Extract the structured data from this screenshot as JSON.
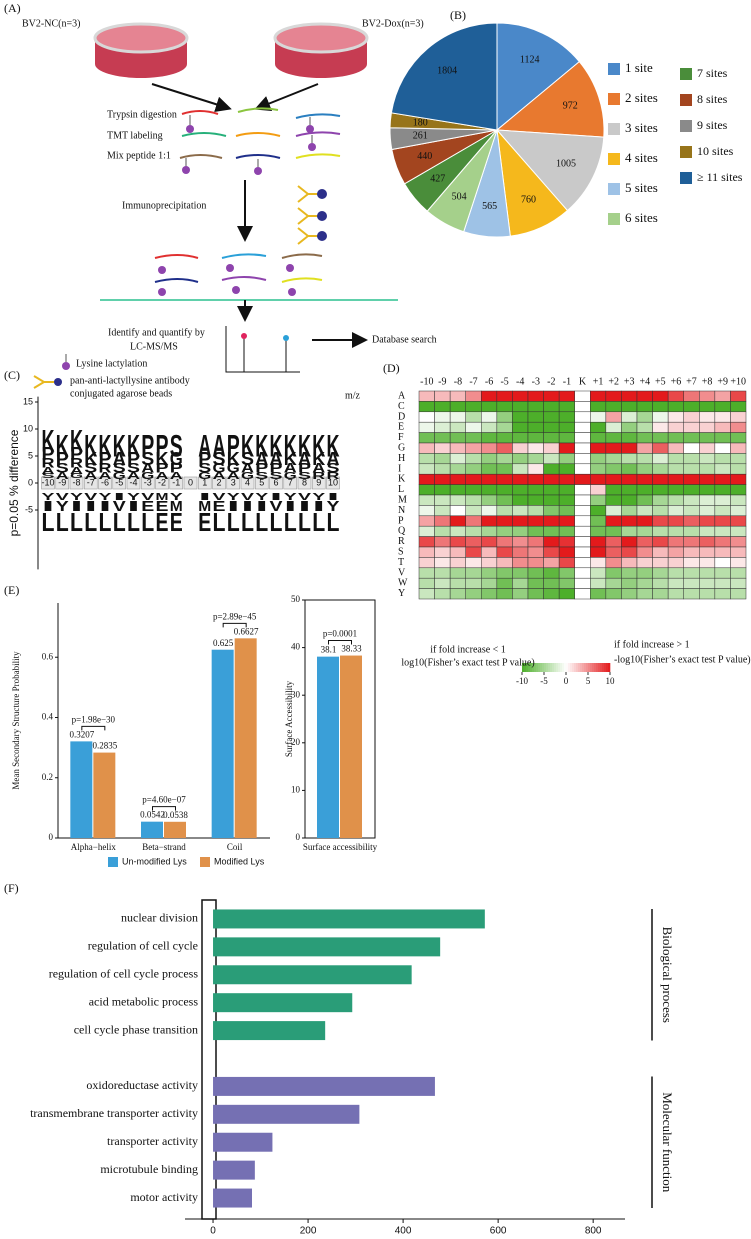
{
  "diagram": {
    "panel": "(A)",
    "dish_left": "BV2-NC(n=3)",
    "dish_right": "BV2-Dox(n=3)",
    "step1": "Trypsin digestion",
    "step2": "TMT labeling",
    "step3": "Mix peptide 1:1",
    "step4": "Immunoprecipitation",
    "step5_line1": "Identify and quantify by",
    "step5_line2": "LC-MS/MS",
    "search": "Database search",
    "mz": "m/z",
    "legend_lysine": "Lysine lactylation",
    "legend_antibody_line1": "pan-anti-lactyllysine antibody",
    "legend_antibody_line2": "conjugated agarose beads"
  },
  "chart_data": [
    {
      "type": "pie",
      "panel": "(B)",
      "labels": [
        "1 site",
        "2 sites",
        "3 sites",
        "4 sites",
        "5 sites",
        "6 sites",
        "7 sites",
        "8 sites",
        "9 sites",
        "10 sites",
        "≥ 11 sites"
      ],
      "values": [
        1124,
        972,
        1005,
        760,
        565,
        504,
        427,
        440,
        261,
        180,
        1804
      ],
      "colors": [
        "#4a88c9",
        "#e8792f",
        "#c9c9c9",
        "#f5b81c",
        "#9ec2e6",
        "#a5d08b",
        "#4a8d3a",
        "#a3451f",
        "#8a8a8a",
        "#97741a",
        "#1f5f98"
      ]
    },
    {
      "type": "heatmap",
      "panel": "(D)",
      "columns": [
        "-10",
        "-9",
        "-8",
        "-7",
        "-6",
        "-5",
        "-4",
        "-3",
        "-2",
        "-1",
        "K",
        "+1",
        "+2",
        "+3",
        "+4",
        "+5",
        "+6",
        "+7",
        "+8",
        "+9",
        "+10"
      ],
      "rows": [
        "A",
        "C",
        "D",
        "E",
        "F",
        "G",
        "H",
        "I",
        "K",
        "L",
        "M",
        "N",
        "P",
        "Q",
        "R",
        "S",
        "T",
        "V",
        "W",
        "Y"
      ],
      "values": [
        [
          3,
          3,
          3,
          5,
          10,
          10,
          10,
          10,
          10,
          10,
          0,
          10,
          10,
          10,
          10,
          10,
          8,
          6,
          5,
          4,
          8
        ],
        [
          -10,
          -10,
          -10,
          -10,
          -10,
          -10,
          -10,
          -10,
          -10,
          -10,
          0,
          -10,
          -10,
          -10,
          -10,
          -10,
          -10,
          -10,
          -10,
          -10,
          -10
        ],
        [
          0,
          -1,
          -1,
          -4,
          -1,
          -6,
          -10,
          -10,
          -10,
          -10,
          0,
          -1,
          4,
          -2,
          -5,
          -1,
          1,
          2,
          1,
          1,
          2
        ],
        [
          -1,
          -2,
          -3,
          -1,
          -3,
          -5,
          -10,
          -10,
          -10,
          -10,
          0,
          -10,
          -2,
          -6,
          -4,
          1,
          2,
          2,
          2,
          3,
          5
        ],
        [
          -8,
          -8,
          -8,
          -8,
          -9,
          -9,
          -9,
          -9,
          -9,
          -9,
          0,
          -9,
          -9,
          -9,
          -8,
          -8,
          -8,
          -8,
          -8,
          -8,
          -8
        ],
        [
          3,
          2,
          3,
          4,
          5,
          7,
          2,
          1,
          2,
          10,
          0,
          10,
          10,
          10,
          4,
          7,
          3,
          0,
          2,
          0,
          3
        ],
        [
          -4,
          -5,
          -2,
          -4,
          -6,
          -5,
          -6,
          -5,
          -3,
          -6,
          0,
          -6,
          -5,
          -4,
          -4,
          -2,
          -4,
          -4,
          -3,
          -4,
          -4
        ],
        [
          -3,
          -4,
          -5,
          -6,
          -8,
          -8,
          -3,
          1,
          -10,
          -10,
          0,
          -6,
          -7,
          -8,
          -6,
          -5,
          -4,
          -4,
          -4,
          -3,
          -4
        ],
        [
          10,
          10,
          10,
          10,
          10,
          10,
          10,
          10,
          10,
          10,
          10,
          10,
          10,
          10,
          10,
          10,
          10,
          10,
          10,
          10,
          10
        ],
        [
          -10,
          -10,
          -10,
          -10,
          -10,
          -10,
          -10,
          -10,
          -10,
          -10,
          0,
          2,
          -10,
          -10,
          -10,
          -10,
          -10,
          -10,
          -10,
          -10,
          -10
        ],
        [
          -3,
          -3,
          -3,
          -4,
          -6,
          -8,
          -10,
          -10,
          -10,
          -10,
          0,
          -6,
          -10,
          -10,
          -8,
          -5,
          -4,
          -3,
          -2,
          -2,
          -3
        ],
        [
          -1,
          -3,
          0,
          -3,
          -1,
          -4,
          -3,
          -4,
          -7,
          -8,
          0,
          -10,
          -2,
          -5,
          -3,
          -4,
          -2,
          -3,
          -2,
          -3,
          -2
        ],
        [
          4,
          6,
          10,
          6,
          10,
          10,
          10,
          10,
          10,
          10,
          0,
          -8,
          10,
          10,
          10,
          8,
          8,
          7,
          8,
          8,
          8
        ],
        [
          -2,
          -4,
          -3,
          -4,
          -5,
          -6,
          -6,
          -8,
          -8,
          -8,
          0,
          -8,
          -8,
          -5,
          -5,
          -4,
          -4,
          -4,
          -3,
          -3,
          -3
        ],
        [
          8,
          6,
          8,
          7,
          8,
          6,
          5,
          6,
          10,
          9,
          0,
          10,
          7,
          10,
          7,
          8,
          6,
          6,
          7,
          6,
          5
        ],
        [
          3,
          2,
          3,
          8,
          3,
          8,
          6,
          5,
          8,
          10,
          0,
          10,
          7,
          8,
          5,
          3,
          4,
          3,
          3,
          3,
          3
        ],
        [
          2,
          1,
          2,
          1,
          2,
          3,
          5,
          5,
          4,
          8,
          0,
          1,
          5,
          3,
          2,
          2,
          2,
          1,
          1,
          0,
          1
        ],
        [
          -4,
          -4,
          -5,
          -5,
          -6,
          -7,
          -7,
          -8,
          -9,
          -7,
          0,
          -3,
          -7,
          -6,
          -6,
          -5,
          -4,
          -4,
          -4,
          -4,
          -4
        ],
        [
          -4,
          -3,
          -4,
          -4,
          -5,
          -8,
          -5,
          -8,
          -8,
          -7,
          0,
          -3,
          -5,
          -6,
          -5,
          -4,
          -3,
          -3,
          -3,
          -3,
          -3
        ],
        [
          -3,
          -4,
          -5,
          -6,
          -7,
          -8,
          -6,
          -8,
          -9,
          -10,
          0,
          -8,
          -7,
          -6,
          -5,
          -5,
          -4,
          -4,
          -4,
          -4,
          -4
        ]
      ],
      "zlim": [
        -10,
        10
      ],
      "zticks": [
        -10,
        -5,
        0,
        5,
        10
      ],
      "colors": [
        "#4daf2a",
        "#ffffff",
        "#e31a1c"
      ],
      "note_low": [
        "if fold increase < 1",
        "log10(Fisher’s exact test P value)"
      ],
      "note_high": [
        "if fold increase > 1",
        "-log10(Fisher’s exact test P value)"
      ]
    },
    {
      "type": "logo",
      "panel": "(C)",
      "ylabel": "p=0.05 % difference",
      "ylim": [
        -16,
        16
      ],
      "yticks": [
        15,
        10,
        5,
        0,
        -5
      ],
      "positions": [
        -10,
        -9,
        -8,
        -7,
        -6,
        -5,
        -4,
        -3,
        -2,
        -1,
        0,
        1,
        2,
        3,
        4,
        5,
        6,
        7,
        8,
        9,
        10
      ],
      "up": [
        [
          "K",
          "P",
          "R",
          "A",
          "S"
        ],
        [
          "K",
          "P",
          "S",
          "A"
        ],
        [
          "K",
          "P",
          "R",
          "A",
          "G"
        ],
        [
          "K",
          "K",
          "S",
          "A"
        ],
        [
          "K",
          "P",
          "R",
          "A"
        ],
        [
          "K",
          "A",
          "S",
          "G"
        ],
        [
          "K",
          "P",
          "S",
          "A"
        ],
        [
          "P",
          "S",
          "A",
          "G"
        ],
        [
          "P",
          "K",
          "P",
          "A"
        ],
        [
          "S",
          "G",
          "P",
          "A"
        ],
        [],
        [
          "A",
          "P",
          "S",
          "G"
        ],
        [
          "A",
          "S",
          "G",
          "A"
        ],
        [
          "P",
          "K",
          "G",
          "A"
        ],
        [
          "K",
          "S",
          "A",
          "G"
        ],
        [
          "K",
          "A",
          "P",
          "S"
        ],
        [
          "K",
          "A",
          "P",
          "S"
        ],
        [
          "K",
          "K",
          "A",
          "G"
        ],
        [
          "K",
          "A",
          "P",
          "S"
        ],
        [
          "K",
          "K",
          "A",
          "R"
        ],
        [
          "K",
          "A",
          "S",
          "R"
        ]
      ],
      "down": [
        [
          "Y",
          "I",
          "L"
        ],
        [
          "V",
          "Y",
          "L"
        ],
        [
          "Y",
          "I",
          "L"
        ],
        [
          "V",
          "I",
          "L"
        ],
        [
          "Y",
          "I",
          "L"
        ],
        [
          "I",
          "V",
          "L"
        ],
        [
          "Y",
          "I",
          "L"
        ],
        [
          "V",
          "E",
          "L"
        ],
        [
          "M",
          "E",
          "E"
        ],
        [
          "Y",
          "M",
          "E"
        ],
        [],
        [
          "I",
          "M",
          "E"
        ],
        [
          "V",
          "E",
          "L"
        ],
        [
          "Y",
          "I",
          "L"
        ],
        [
          "V",
          "I",
          "L"
        ],
        [
          "Y",
          "I",
          "L"
        ],
        [
          "I",
          "V",
          "L"
        ],
        [
          "Y",
          "I",
          "L"
        ],
        [
          "V",
          "I",
          "L"
        ],
        [
          "Y",
          "I",
          "L"
        ],
        [
          "I",
          "Y",
          "L"
        ]
      ],
      "letter_colors": {
        "K": "#1f5fa8",
        "R": "#1f5fa8",
        "S": "#2a9a3a",
        "G": "#2a9a3a",
        "Y": "#2a9a3a",
        "E": "#d62728",
        "P": "#111111",
        "A": "#111111",
        "L": "#111111",
        "I": "#111111",
        "V": "#111111",
        "M": "#111111"
      }
    },
    {
      "type": "bar",
      "panel": "(E)",
      "ylabel": "Mean Secondary Structure Probability",
      "categories": [
        "Alpha−helix",
        "Beta−strand",
        "Coil"
      ],
      "series": [
        {
          "name": "Un-modified Lys",
          "color": "#3a9fd8",
          "values": [
            0.3207,
            0.0542,
            0.625
          ]
        },
        {
          "name": "Modified Lys",
          "color": "#e0914a",
          "values": [
            0.2835,
            0.0538,
            0.6627
          ]
        }
      ],
      "annotations": [
        "p=1.98e−30",
        "p=4.60e−07",
        "p=2.89e−45"
      ],
      "ylim": [
        0,
        0.78
      ],
      "yticks": [
        0,
        0.2,
        0.4,
        0.6
      ],
      "legend": "bottom"
    },
    {
      "type": "bar",
      "ylabel": "Surface Accessibility",
      "categories": [
        "Surface accessibility"
      ],
      "series": [
        {
          "color": "#3a9fd8",
          "values": [
            38.1
          ]
        },
        {
          "color": "#e0914a",
          "values": [
            38.33
          ]
        }
      ],
      "annotations": [
        "p=0.0001"
      ],
      "ylim": [
        0,
        50
      ],
      "yticks": [
        0,
        10,
        20,
        30,
        40,
        50
      ]
    },
    {
      "type": "barh",
      "panel": "(F)",
      "groups": [
        {
          "name": "Biological process",
          "color": "#2a9d78",
          "categories": [
            "nuclear division",
            "regulation of cell cycle",
            "regulation of cell cycle process",
            "acid metabolic process",
            "cell cycle phase transition"
          ],
          "values": [
            572,
            478,
            418,
            293,
            236
          ]
        },
        {
          "name": "Molecular function",
          "color": "#7570b3",
          "categories": [
            "oxidoreductase activity",
            "transmembrane transporter activity",
            "transporter activity",
            "microtubule binding",
            "motor activity"
          ],
          "values": [
            467,
            308,
            125,
            88,
            82
          ]
        }
      ],
      "xlim": [
        -59,
        867
      ],
      "xticks": [
        0,
        200,
        400,
        600,
        800
      ]
    }
  ]
}
